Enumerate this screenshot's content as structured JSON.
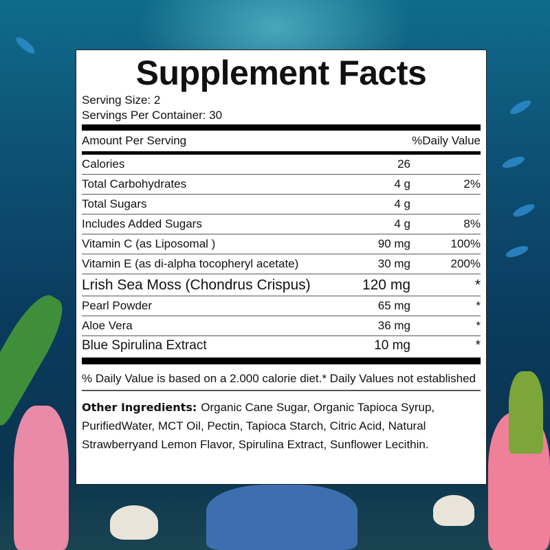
{
  "title": "Supplement Facts",
  "serving_size": "Serving Size: 2",
  "servings_per_container": "Servings Per Container: 30",
  "header": {
    "amount": "Amount Per Serving",
    "dv": "%Daily Value"
  },
  "rows": [
    {
      "name": "Calories",
      "amount": "26",
      "dv": ""
    },
    {
      "name": "Total Carbohydrates",
      "amount": "4 g",
      "dv": "2%"
    },
    {
      "name": "Total Sugars",
      "amount": "4 g",
      "dv": ""
    },
    {
      "name": "Includes Added Sugars",
      "amount": "4 g",
      "dv": "8%"
    },
    {
      "name": "Vitamin C (as Liposomal )",
      "amount": "90 mg",
      "dv": "100%"
    },
    {
      "name": "Vitamin E (as di-alpha tocopheryl acetate)",
      "amount": "30 mg",
      "dv": "200%"
    },
    {
      "name": "Lrish Sea Moss (Chondrus Crispus)",
      "amount": "120 mg",
      "dv": "*"
    },
    {
      "name": "Pearl Powder",
      "amount": "65 mg",
      "dv": "*"
    },
    {
      "name": "Aloe Vera",
      "amount": "36 mg",
      "dv": "*"
    },
    {
      "name": "Blue Spirulina Extract",
      "amount": "10 mg",
      "dv": "*"
    }
  ],
  "footnote": "% Daily Value is based on a 2.000 calorie diet.* Daily Values not established",
  "other_ingredients": {
    "label": "Other Ingredients:",
    "text": "Organic Cane Sugar, Organic Tapioca Syrup, PurifiedWater, MCT Oil, Pectin, Tapioca Starch, Citric Acid, Natural Strawberryand Lemon Flavor, Spirulina Extract, Sunflower Lecithin."
  }
}
